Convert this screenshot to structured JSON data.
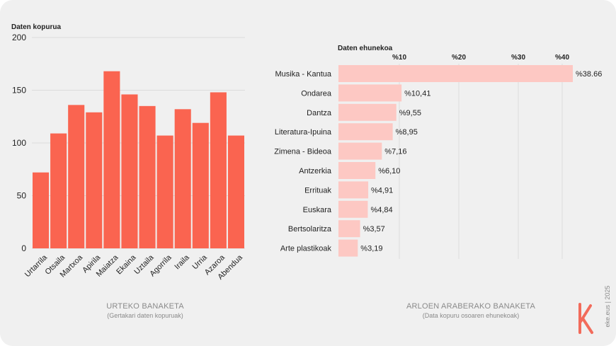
{
  "colors": {
    "bar_left": "#fa6450",
    "bar_right": "#fdc8c3",
    "grid": "#dcdcdc",
    "text": "#222222",
    "muted": "#8a8a8a",
    "logo": "#f26b5b"
  },
  "chart_data": [
    {
      "type": "bar",
      "title": "URTEKO BANAKETA",
      "subtitle": "(Gertakari daten kopuruak)",
      "ylabel": "Daten kopurua",
      "xlabel": "",
      "ylim": [
        0,
        200
      ],
      "yticks": [
        0,
        50,
        100,
        150,
        200
      ],
      "grid": true,
      "categories": [
        "Urtarrila",
        "Otsaila",
        "Martxoa",
        "Apirila",
        "Maiatza",
        "Ekaina",
        "Uztaila",
        "Agorrila",
        "Iraila",
        "Urria",
        "Azaroa",
        "Abendua"
      ],
      "values": [
        72,
        109,
        136,
        129,
        168,
        146,
        135,
        107,
        132,
        119,
        148,
        107
      ]
    },
    {
      "type": "bar",
      "orientation": "horizontal",
      "title": "ARLOEN ARABERAKO BANAKETA",
      "subtitle": "(Data kopuru osoaren ehunekoak)",
      "xlabel": "Daten ehunekoa",
      "xlim": [
        0,
        40
      ],
      "xticks": [
        10,
        20,
        30,
        40
      ],
      "xtick_labels": [
        "%10",
        "%20",
        "%30",
        "%40"
      ],
      "grid": true,
      "categories": [
        "Musika - Kantua",
        "Ondarea",
        "Dantza",
        "Literatura-Ipuina",
        "Zimena - Bideoa",
        "Antzerkia",
        "Errituak",
        "Euskara",
        "Bertsolaritza",
        "Arte plastikoak"
      ],
      "values": [
        38.66,
        10.41,
        9.55,
        8.95,
        7.16,
        6.1,
        4.91,
        4.84,
        3.57,
        3.19
      ],
      "data_labels": [
        "%38.66",
        "%10,41",
        "%9,55",
        "%8,95",
        "%7,16",
        "%6,10",
        "%4,91",
        "%4,84",
        "%3,57",
        "%3,19"
      ]
    }
  ],
  "brand": {
    "text": "eke.eus | 2025",
    "logo_icon": "eke-k-logo-icon"
  }
}
